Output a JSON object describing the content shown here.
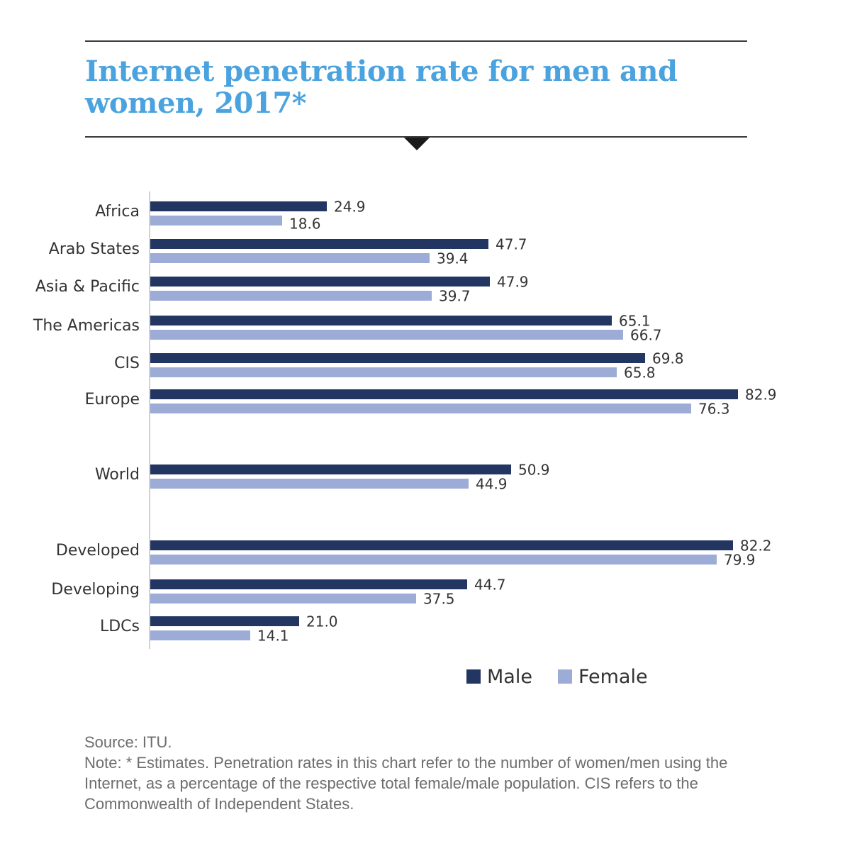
{
  "title": "Internet penetration rate for men and women, 2017*",
  "colors": {
    "title": "#4aa3de",
    "male": "#233561",
    "female": "#9dabd7",
    "axis": "#d2d2d2"
  },
  "chart_data": {
    "type": "bar",
    "orientation": "horizontal",
    "title": "Internet penetration rate for men and women, 2017*",
    "xlabel": "",
    "ylabel": "",
    "xlim": [
      0,
      100
    ],
    "grid": false,
    "legend_position": "bottom-right",
    "categories": [
      "Africa",
      "Arab States",
      "Asia & Pacific",
      "The Americas",
      "CIS",
      "Europe",
      "World",
      "Developed",
      "Developing",
      "LDCs"
    ],
    "series": [
      {
        "name": "Male",
        "values": [
          24.9,
          47.7,
          47.9,
          65.1,
          69.8,
          82.9,
          50.9,
          82.2,
          44.7,
          21.0
        ],
        "labels": [
          "24.9",
          "47.7",
          "47.9",
          "65.1",
          "69.8",
          "82.9",
          "50.9",
          "82.2",
          "44.7",
          "21.0"
        ]
      },
      {
        "name": "Female",
        "values": [
          18.6,
          39.4,
          39.7,
          66.7,
          65.8,
          76.3,
          44.9,
          79.9,
          37.5,
          14.1
        ],
        "labels": [
          "18.6",
          "39.4",
          "39.7",
          "66.7",
          "65.8",
          "76.3",
          "44.9",
          "79.9",
          "37.5",
          "14.1"
        ]
      }
    ]
  },
  "legend": {
    "male": "Male",
    "female": "Female"
  },
  "footnotes": {
    "source": "Source: ITU.",
    "note": "Note: * Estimates. Penetration rates in this chart refer to the number of women/men using the Internet, as a percentage of the respective total female/male population. CIS refers to the Commonwealth of Independent States."
  }
}
